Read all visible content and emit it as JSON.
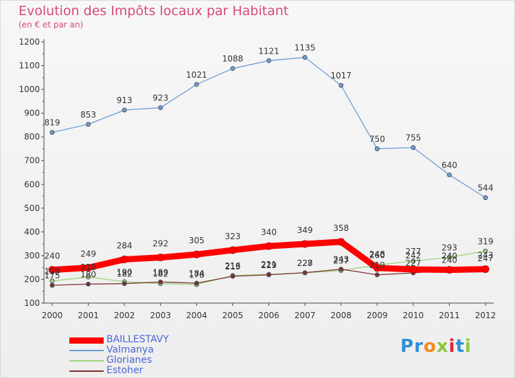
{
  "chart_data": {
    "type": "line",
    "title": "Evolution des Impôts locaux par Habitant",
    "subtitle": "(en € et par an)",
    "xlabel": "",
    "ylabel": "",
    "x": [
      "2000",
      "2001",
      "2002",
      "2003",
      "2004",
      "2005",
      "2006",
      "2007",
      "2008",
      "2009",
      "2010",
      "2011",
      "2012"
    ],
    "ylim": [
      100,
      1200
    ],
    "yticks": [
      100,
      200,
      300,
      400,
      500,
      600,
      700,
      800,
      900,
      1000,
      1100,
      1200
    ],
    "grid": false,
    "legend_position": "bottom-left",
    "series": [
      {
        "name": "BAILLESTAVY",
        "color": "#ff0000",
        "values": [
          240,
          249,
          284,
          292,
          305,
          323,
          340,
          349,
          358,
          248,
          242,
          240,
          243
        ],
        "labels": [
          "240",
          "249",
          "284",
          "292",
          "305",
          "323",
          "340",
          "349",
          "358",
          "248",
          "242",
          "240",
          "243"
        ]
      },
      {
        "name": "Valmanya",
        "color": "#6a9ed4",
        "values": [
          819,
          853,
          913,
          923,
          1021,
          1088,
          1121,
          1135,
          1017,
          750,
          755,
          640,
          544
        ],
        "labels": [
          "819",
          "853",
          "913",
          "923",
          "1021",
          "1088",
          "1121",
          "1135",
          "1017",
          "750",
          "755",
          "640",
          "544"
        ]
      },
      {
        "name": "Glorianes",
        "color": "#9fd47a",
        "values": [
          193,
          210,
          190,
          182,
          178,
          216,
          221,
          227,
          237,
          260,
          277,
          293,
          319
        ],
        "labels": [
          "193",
          "210",
          "190",
          "182",
          "178",
          "216",
          "221",
          "227",
          "237",
          "260",
          "277",
          "293",
          "319"
        ]
      },
      {
        "name": "Estoher",
        "color": "#7a2f2f",
        "values": [
          175,
          180,
          182,
          189,
          184,
          213,
          219,
          228,
          243,
          219,
          227,
          240,
          247
        ],
        "labels": [
          "175",
          "180",
          "182",
          "189",
          "184",
          "213",
          "219",
          "228",
          "243",
          "219",
          "227",
          "240",
          "247"
        ]
      }
    ]
  },
  "brand": {
    "letters": [
      "P",
      "r",
      "o",
      "x",
      "i",
      "t",
      "i"
    ],
    "colors": [
      "#2f8fd8",
      "#2f8fd8",
      "#f28a1a",
      "#8cc63f",
      "#e2233b",
      "#2f8fd8",
      "#8cc63f"
    ]
  }
}
